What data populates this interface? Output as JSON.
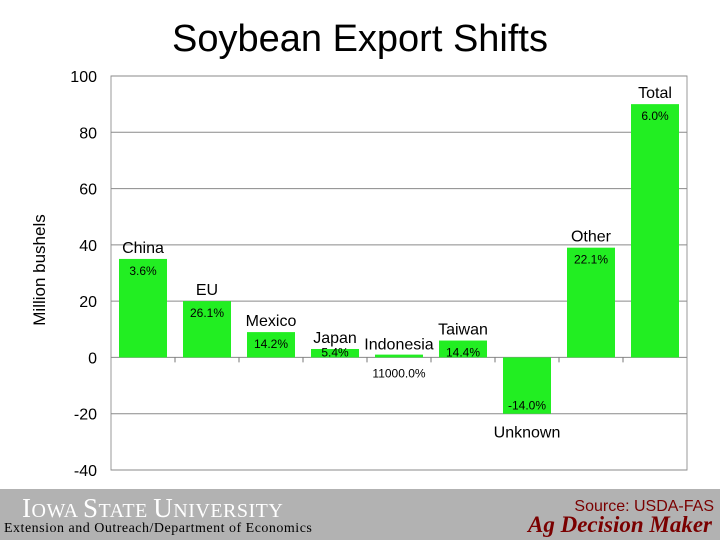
{
  "title": "Soybean Export Shifts",
  "chart_data": {
    "type": "bar",
    "title": "Soybean Export Shifts",
    "ylabel": "Million bushels",
    "xlabel": "",
    "ylim": [
      -40,
      100
    ],
    "yticks": [
      100,
      80,
      60,
      40,
      20,
      0,
      -20,
      -40
    ],
    "grid": "horizontal",
    "bar_color": "#22ee22",
    "categories": [
      "China",
      "EU",
      "Mexico",
      "Japan",
      "Indonesia",
      "Taiwan",
      "Unknown",
      "Other",
      "Total"
    ],
    "category_labels": [
      "China",
      "EU",
      "Mexico",
      "Japan",
      "Indonesia",
      "Taiwan",
      "Unknown",
      "Other",
      "Total"
    ],
    "values": [
      35,
      20,
      9,
      3,
      1,
      6,
      -20,
      39,
      90
    ],
    "data_labels": [
      "3.6%",
      "26.1%",
      "14.2%",
      "5.4%",
      "11000.0%",
      "14.4%",
      "-14.0%",
      "22.1%",
      "6.0%"
    ]
  },
  "footer": {
    "university_first": "I",
    "university_rest_1": "OWA ",
    "university_first_2": "S",
    "university_rest_2": "TATE ",
    "university_first_3": "U",
    "university_rest_3": "NIVERSITY",
    "department": "Extension and Outreach/Department of Economics",
    "source": "Source: USDA-FAS",
    "program": "Ag Decision Maker"
  },
  "colors": {
    "footer_bar": "#b2b2b2",
    "brand_text": "#7a0000"
  }
}
